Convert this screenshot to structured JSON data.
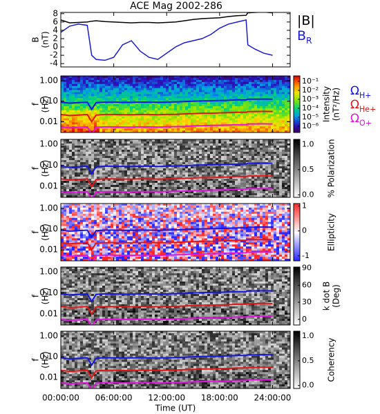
{
  "chart_data": {
    "type": "multi-panel",
    "title": "ACE Mag 2002-286",
    "xlabel": "Time (UT)",
    "x": [
      0,
      1,
      2,
      3,
      3.5,
      4,
      5,
      6,
      7,
      8,
      9,
      10,
      11,
      12,
      13,
      14,
      15,
      16,
      17,
      18,
      19,
      20,
      21,
      21.2,
      22,
      23,
      24
    ],
    "xlim": [
      0,
      26
    ],
    "xticks": [
      {
        "value": 0,
        "label": "00:00:00"
      },
      {
        "value": 6,
        "label": "06:00:00"
      },
      {
        "value": 12,
        "label": "12:00:00"
      },
      {
        "value": 18,
        "label": "18:00:00"
      },
      {
        "value": 24,
        "label": "24:00:00"
      }
    ],
    "gyrofrequency": {
      "series": [
        {
          "name": "Ω",
          "subscript": "H+",
          "color": "#1515e0",
          "values": [
            0.09,
            0.08,
            0.085,
            0.09,
            0.04,
            0.085,
            0.09,
            0.09,
            0.088,
            0.088,
            0.09,
            0.09,
            0.088,
            0.09,
            0.092,
            0.095,
            0.1,
            0.103,
            0.105,
            0.107,
            0.11,
            0.115,
            0.115,
            0.125,
            0.125,
            0.127,
            0.125
          ]
        },
        {
          "name": "Ω",
          "subscript": "He+",
          "color": "#e01515",
          "values": [
            0.0225,
            0.02,
            0.021,
            0.0225,
            0.01,
            0.021,
            0.0225,
            0.0225,
            0.022,
            0.022,
            0.0225,
            0.0225,
            0.022,
            0.0225,
            0.023,
            0.024,
            0.025,
            0.026,
            0.026,
            0.027,
            0.0275,
            0.029,
            0.029,
            0.031,
            0.031,
            0.032,
            0.031
          ]
        },
        {
          "name": "Ω",
          "subscript": "O+",
          "color": "#e015e0",
          "values": [
            0.0056,
            0.005,
            0.0053,
            0.0056,
            0.0025,
            0.0053,
            0.0056,
            0.0056,
            0.0055,
            0.0055,
            0.0056,
            0.0056,
            0.0055,
            0.0056,
            0.0058,
            0.0059,
            0.0063,
            0.0064,
            0.0066,
            0.0067,
            0.0069,
            0.0072,
            0.0072,
            0.0078,
            0.0078,
            0.0079,
            0.0078
          ]
        }
      ]
    },
    "panels": [
      {
        "type": "line",
        "ylabel": [
          "B",
          "(nT)"
        ],
        "ylim": [
          -4.8,
          8.3
        ],
        "yticks": [
          -4,
          -2,
          0,
          2,
          4,
          6,
          8
        ],
        "series": [
          {
            "name": "|B|",
            "color": "#000000",
            "values": [
              6.5,
              5.8,
              5.9,
              6.0,
              6.2,
              6.3,
              6.1,
              6.0,
              5.9,
              5.8,
              5.9,
              5.9,
              5.8,
              5.9,
              6.0,
              6.3,
              6.6,
              6.8,
              6.9,
              7.0,
              7.3,
              7.5,
              7.6,
              8.2,
              8.3,
              8.4,
              8.2
            ]
          },
          {
            "name": "B",
            "subscript": "R",
            "color": "#1a1ad0",
            "values": [
              3.5,
              5.0,
              5.5,
              5.2,
              -2.0,
              -3.0,
              -3.2,
              -2.5,
              0.5,
              1.5,
              -1.0,
              -2.5,
              -3.0,
              -1.5,
              0.0,
              1.0,
              1.5,
              2.0,
              3.0,
              4.5,
              5.5,
              6.0,
              6.5,
              0.5,
              -0.5,
              -1.5,
              -2.0
            ]
          }
        ]
      },
      {
        "type": "spectrogram",
        "ylabel": [
          "f",
          "(Hz)"
        ],
        "ylim": [
          0.003,
          1.7
        ],
        "log_scale": true,
        "yticks": [
          {
            "value": 1,
            "label": "1.00"
          },
          {
            "value": 0.1,
            "label": "0.10"
          },
          {
            "value": 0.01,
            "label": "0.01"
          }
        ],
        "gyro_legend": true,
        "colorbar": {
          "label": [
            "Intensity",
            "(nT²/Hz)"
          ],
          "colormap": "rainbow",
          "log_scale": true,
          "range": [
            2e-07,
            0.4
          ],
          "ticks": [
            {
              "value": 0.1,
              "label": "10⁻¹"
            },
            {
              "value": 0.01,
              "label": "10⁻²"
            },
            {
              "value": 0.001,
              "label": "10⁻³"
            },
            {
              "value": 0.0001,
              "label": "10⁻⁴"
            },
            {
              "value": 1e-05,
              "label": "10⁻⁵"
            },
            {
              "value": 1e-06,
              "label": "10⁻⁶"
            }
          ]
        }
      },
      {
        "type": "spectrogram",
        "ylabel": [
          "f",
          "(Hz)"
        ],
        "ylim": [
          0.003,
          1.7
        ],
        "log_scale": true,
        "yticks": [
          {
            "value": 1,
            "label": "1.00"
          },
          {
            "value": 0.1,
            "label": "0.10"
          },
          {
            "value": 0.01,
            "label": "0.01"
          }
        ],
        "colorbar": {
          "label": [
            "% Polarization"
          ],
          "colormap": "gray",
          "range": [
            -0.05,
            1.1
          ],
          "ticks": [
            {
              "value": 0,
              "label": "0.0"
            },
            {
              "value": 0.5,
              "label": "0.5"
            },
            {
              "value": 1,
              "label": "1.0"
            }
          ]
        }
      },
      {
        "type": "spectrogram",
        "ylabel": [
          "f",
          "(Hz)"
        ],
        "ylim": [
          0.003,
          1.7
        ],
        "log_scale": true,
        "yticks": [
          {
            "value": 1,
            "label": "1.00"
          },
          {
            "value": 0.1,
            "label": "0.10"
          },
          {
            "value": 0.01,
            "label": "0.01"
          }
        ],
        "colorbar": {
          "label": [
            "Ellipticity"
          ],
          "colormap": "blue-white-red",
          "range": [
            -1.2,
            1.1
          ],
          "ticks": [
            -1,
            0,
            1
          ]
        }
      },
      {
        "type": "spectrogram",
        "ylabel": [
          "f",
          "(Hz)"
        ],
        "ylim": [
          0.003,
          1.7
        ],
        "log_scale": true,
        "yticks": [
          {
            "value": 1,
            "label": "1.00"
          },
          {
            "value": 0.1,
            "label": "0.10"
          },
          {
            "value": 0.01,
            "label": "0.01"
          }
        ],
        "colorbar": {
          "label": [
            "k dot B",
            "(Deg)"
          ],
          "colormap": "gray",
          "range": [
            -10,
            92
          ],
          "ticks": [
            0,
            30,
            60,
            90
          ]
        }
      },
      {
        "type": "spectrogram",
        "ylabel": [
          "f",
          "(Hz)"
        ],
        "ylim": [
          0.003,
          1.7
        ],
        "log_scale": true,
        "yticks": [
          {
            "value": 1,
            "label": "1.00"
          },
          {
            "value": 0.1,
            "label": "0.10"
          },
          {
            "value": 0.01,
            "label": "0.01"
          }
        ],
        "colorbar": {
          "label": [
            "Coherency"
          ],
          "colormap": "gray",
          "range": [
            -0.06,
            1.1
          ],
          "ticks": [
            {
              "value": 0,
              "label": "0.0"
            },
            {
              "value": 0.5,
              "label": "0.5"
            },
            {
              "value": 1,
              "label": "1.0"
            }
          ]
        }
      }
    ]
  }
}
